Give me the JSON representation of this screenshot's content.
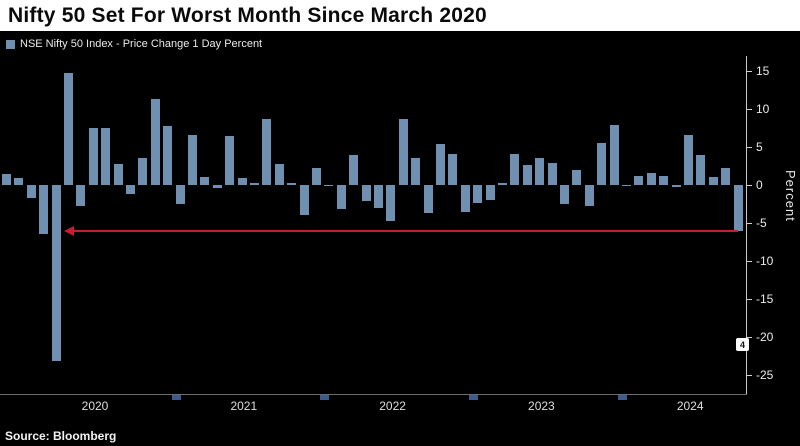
{
  "header": {
    "title": "Nifty 50 Set For Worst Month Since March 2020"
  },
  "legend": {
    "label": "NSE Nifty 50 Index - Price Change 1 Day Percent",
    "swatch_color": "#6f90b0"
  },
  "axis": {
    "y_label": "Percent",
    "y_ticks": [
      15,
      10,
      5,
      0,
      -5,
      -10,
      -15,
      -20,
      -25
    ],
    "x_labels": [
      "2020",
      "2021",
      "2022",
      "2023",
      "2024"
    ]
  },
  "annotation": {
    "type": "arrow-left",
    "value": -6,
    "color": "#c1202e"
  },
  "source": {
    "text": "Source: Bloomberg"
  },
  "watermark": {
    "glyph": "4"
  },
  "chart_data": {
    "type": "bar",
    "title": "Nifty 50 Set For Worst Month Since March 2020",
    "series_name": "NSE Nifty 50 Index - Price Change 1 Day Percent",
    "ylabel": "Percent",
    "ylim": [
      -27,
      17
    ],
    "grid": false,
    "legend_position": "top-left",
    "bar_color": "#6f90b0",
    "x": [
      "2019-11",
      "2019-12",
      "2020-01",
      "2020-02",
      "2020-03",
      "2020-04",
      "2020-05",
      "2020-06",
      "2020-07",
      "2020-08",
      "2020-09",
      "2020-10",
      "2020-11",
      "2020-12",
      "2021-01",
      "2021-02",
      "2021-03",
      "2021-04",
      "2021-05",
      "2021-06",
      "2021-07",
      "2021-08",
      "2021-09",
      "2021-10",
      "2021-11",
      "2021-12",
      "2022-01",
      "2022-02",
      "2022-03",
      "2022-04",
      "2022-05",
      "2022-06",
      "2022-07",
      "2022-08",
      "2022-09",
      "2022-10",
      "2022-11",
      "2022-12",
      "2023-01",
      "2023-02",
      "2023-03",
      "2023-04",
      "2023-05",
      "2023-06",
      "2023-07",
      "2023-08",
      "2023-09",
      "2023-10",
      "2023-11",
      "2023-12",
      "2024-01",
      "2024-02",
      "2024-03",
      "2024-04",
      "2024-05",
      "2024-06",
      "2024-07",
      "2024-08",
      "2024-09",
      "2024-10"
    ],
    "values": [
      1.5,
      0.9,
      -1.7,
      -6.4,
      -23.2,
      14.7,
      -2.8,
      7.5,
      7.5,
      2.8,
      -1.2,
      3.5,
      11.4,
      7.8,
      -2.5,
      6.6,
      1.1,
      -0.4,
      6.5,
      0.9,
      0.3,
      8.7,
      2.8,
      0.3,
      -3.9,
      2.2,
      -0.1,
      -3.1,
      4.0,
      -2.1,
      -3.0,
      -4.8,
      8.7,
      3.5,
      -3.7,
      5.4,
      4.1,
      -3.5,
      -2.4,
      -2.0,
      0.3,
      4.1,
      2.6,
      3.5,
      2.9,
      -2.5,
      2.0,
      -2.8,
      5.5,
      7.9,
      0.0,
      1.2,
      1.6,
      1.2,
      -0.3,
      6.6,
      3.9,
      1.1,
      2.3,
      -6.0
    ]
  }
}
